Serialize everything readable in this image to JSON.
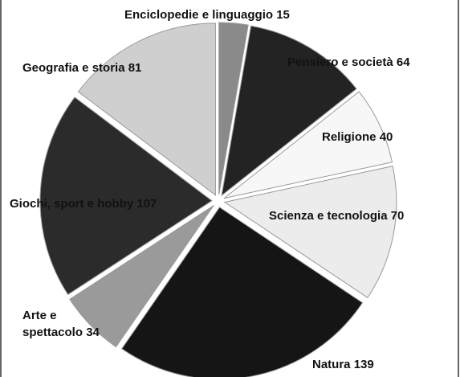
{
  "chart_data": {
    "type": "pie",
    "categories": [
      "Enciclopedie e linguaggio",
      "Pensiero e società",
      "Religione",
      "Scienza e tecnologia",
      "Natura",
      "Arte e spettacolo",
      "Giochi, sport e hobby",
      "Geografia e storia"
    ],
    "values": [
      15,
      64,
      40,
      70,
      139,
      34,
      107,
      81
    ],
    "colors": [
      "#8a8a8a",
      "#232323",
      "#f7f7f7",
      "#ececec",
      "#151515",
      "#9a9a9a",
      "#2b2b2b",
      "#cfcfcf"
    ]
  }
}
